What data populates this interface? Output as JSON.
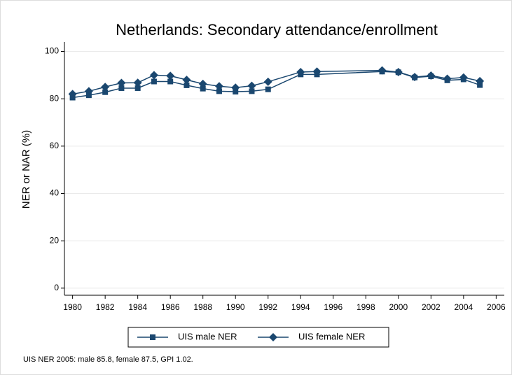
{
  "chart_data": {
    "type": "line",
    "title": "Netherlands: Secondary attendance/enrollment",
    "ylabel": "NER or NAR (%)",
    "note": "UIS NER 2005: male 85.8, female 87.5, GPI 1.02.",
    "x": [
      1980,
      1981,
      1982,
      1983,
      1984,
      1985,
      1986,
      1987,
      1988,
      1989,
      1990,
      1991,
      1992,
      1994,
      1995,
      1999,
      2000,
      2001,
      2002,
      2003,
      2004,
      2005
    ],
    "series": [
      {
        "name": "UIS male NER",
        "color": "#1a476f",
        "marker": "square",
        "values": [
          80.5,
          81.5,
          82.8,
          84.5,
          84.5,
          87.3,
          87.3,
          85.7,
          84.3,
          83.2,
          83.0,
          83.2,
          84.0,
          90.3,
          90.3,
          91.5,
          91.2,
          89.0,
          89.5,
          87.8,
          88.2,
          85.8
        ]
      },
      {
        "name": "UIS female NER",
        "color": "#1a476f",
        "marker": "diamond",
        "values": [
          82.0,
          83.2,
          85.0,
          86.7,
          86.8,
          90.0,
          89.7,
          88.0,
          86.3,
          85.3,
          84.7,
          85.5,
          87.2,
          91.3,
          91.5,
          92.0,
          91.3,
          89.2,
          89.8,
          88.5,
          89.0,
          87.5
        ]
      }
    ],
    "xlim": [
      1979.5,
      2006.5
    ],
    "xticks": [
      1980,
      1982,
      1984,
      1986,
      1988,
      1990,
      1992,
      1994,
      1996,
      1998,
      2000,
      2002,
      2004,
      2006
    ],
    "ylim": [
      -3,
      104
    ],
    "yticks": [
      0,
      20,
      40,
      60,
      80,
      100
    ],
    "grid": true,
    "legend": "bottom"
  }
}
